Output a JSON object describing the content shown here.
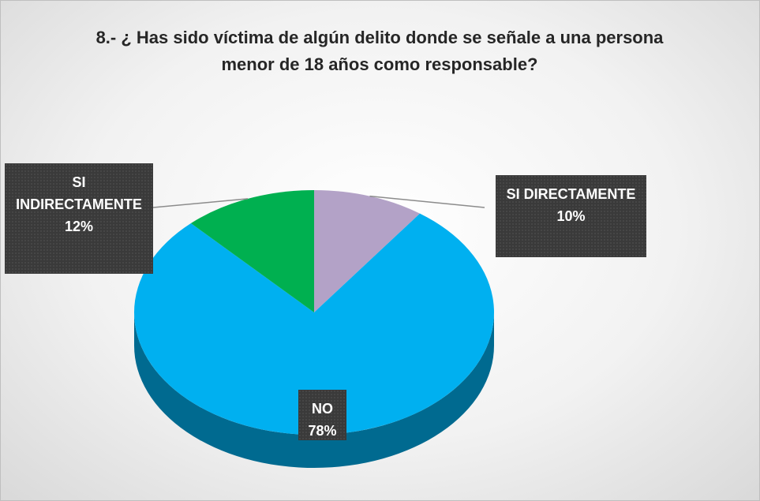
{
  "chart_data": {
    "type": "pie3d",
    "title": "8.- ¿ Has sido víctima de algún delito donde se señale a una persona menor de 18 años como responsable?",
    "categories": [
      "SI DIRECTAMENTE",
      "NO",
      "SI INDIRECTAMENTE"
    ],
    "values": [
      10,
      78,
      12
    ],
    "value_labels": [
      "10%",
      "78%",
      "12%"
    ],
    "colors": [
      "#b3a2c7",
      "#00b0f0",
      "#00b050"
    ]
  }
}
